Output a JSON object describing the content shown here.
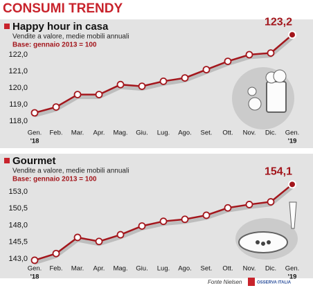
{
  "page_title": "CONSUMI TRENDY",
  "source": "Fonte Nielsen",
  "logo": "OSSERVA ITALIA",
  "chart_data": [
    {
      "type": "line",
      "title": "Happy hour in casa",
      "subtitle": "Vendite a valore, medie mobili annuali",
      "note": "Base: gennaio 2013 = 100",
      "categories": [
        "Gen.",
        "Feb.",
        "Mar.",
        "Apr.",
        "Mag.",
        "Giu.",
        "Lug.",
        "Ago.",
        "Set.",
        "Ott.",
        "Nov.",
        "Dic.",
        "Gen."
      ],
      "category_sublabels": [
        "'18",
        null,
        null,
        null,
        null,
        null,
        null,
        null,
        null,
        null,
        null,
        null,
        "'19"
      ],
      "values": [
        118.5,
        118.85,
        119.6,
        119.6,
        120.2,
        120.1,
        120.4,
        120.6,
        121.1,
        121.6,
        122.0,
        122.1,
        123.2
      ],
      "value_labels": [
        null,
        null,
        null,
        null,
        null,
        null,
        null,
        null,
        null,
        null,
        null,
        null,
        "123,2"
      ],
      "color": "#a3161c",
      "ylim": [
        117.5,
        123.5
      ],
      "yticks": [
        {
          "value": 118,
          "label": "118,0"
        },
        {
          "value": 119,
          "label": "119,0"
        },
        {
          "value": 120,
          "label": "120,0"
        },
        {
          "value": 121,
          "label": "121,0"
        },
        {
          "value": 122,
          "label": "122,0"
        }
      ],
      "grid": false
    },
    {
      "type": "line",
      "title": "Gourmet",
      "subtitle": "Vendite a valore, medie mobili annuali",
      "note": "Base: gennaio 2013 = 100",
      "categories": [
        "Gen.",
        "Feb.",
        "Mar.",
        "Apr.",
        "Mag.",
        "Giu.",
        "Lug.",
        "Ago.",
        "Set.",
        "Ott.",
        "Nov.",
        "Dic.",
        "Gen."
      ],
      "category_sublabels": [
        "'18",
        null,
        null,
        null,
        null,
        null,
        null,
        null,
        null,
        null,
        null,
        null,
        "'19"
      ],
      "values": [
        142.8,
        143.8,
        146.2,
        145.6,
        146.6,
        147.9,
        148.6,
        148.9,
        149.5,
        150.6,
        151.1,
        151.5,
        154.1
      ],
      "value_labels": [
        null,
        null,
        null,
        null,
        null,
        null,
        null,
        null,
        null,
        null,
        null,
        null,
        "154,1"
      ],
      "color": "#a3161c",
      "ylim": [
        142,
        155
      ],
      "yticks": [
        {
          "value": 143,
          "label": "143,0"
        },
        {
          "value": 145.5,
          "label": "145,5"
        },
        {
          "value": 148,
          "label": "148,0"
        },
        {
          "value": 150.5,
          "label": "150,5"
        },
        {
          "value": 153,
          "label": "153,0"
        }
      ],
      "grid": false
    }
  ]
}
